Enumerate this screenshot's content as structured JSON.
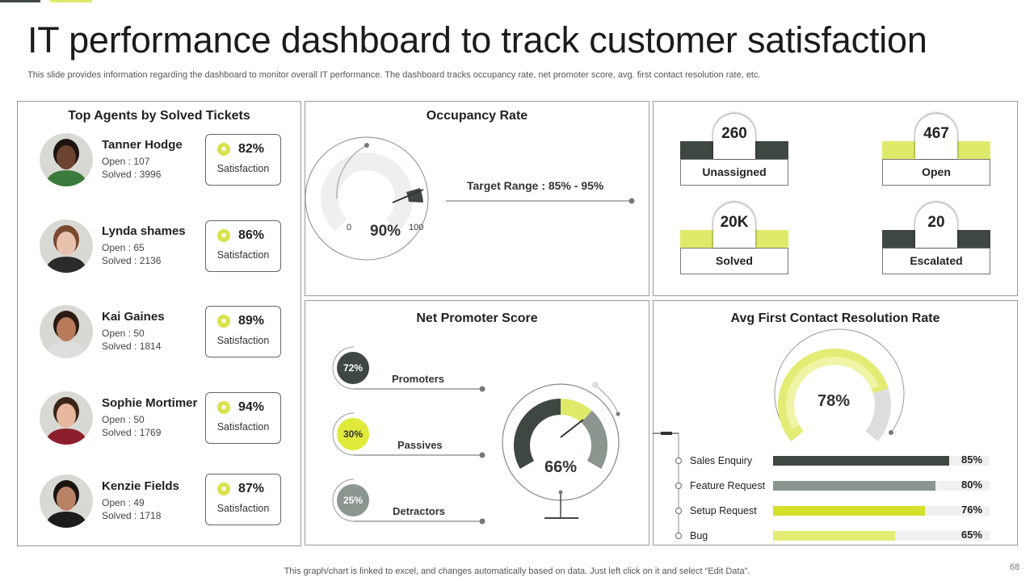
{
  "title": "IT performance dashboard to track customer satisfaction",
  "subtitle": "This slide provides information regarding the dashboard to monitor overall IT performance. The dashboard tracks occupancy rate, net promoter score, avg. first contact resolution rate, etc.",
  "agents_panel": {
    "title": "Top Agents by Solved Tickets",
    "agents": [
      {
        "name": "Tanner Hodge",
        "open": "Open : 107",
        "solved": "Solved : 3996",
        "pct": "82%",
        "sat_label": "Satisfaction",
        "skin": "#6b4330",
        "hair": "#1d1410",
        "shirt": "#3a7a3a"
      },
      {
        "name": "Lynda shames",
        "open": "Open : 65",
        "solved": "Solved : 2136",
        "pct": "86%",
        "sat_label": "Satisfaction",
        "skin": "#e8c2ae",
        "hair": "#7a4a2e",
        "shirt": "#2b2b2b"
      },
      {
        "name": "Kai Gaines",
        "open": "Open : 50",
        "solved": "Solved : 1814",
        "pct": "89%",
        "sat_label": "Satisfaction",
        "skin": "#b77a5a",
        "hair": "#2a1a12",
        "shirt": "#dedede"
      },
      {
        "name": "Sophie Mortimer",
        "open": "Open : 50",
        "solved": "Solved : 1769",
        "pct": "94%",
        "sat_label": "Satisfaction",
        "skin": "#e6b79d",
        "hair": "#3a2418",
        "shirt": "#8c1f2e"
      },
      {
        "name": "Kenzie Fields",
        "open": "Open : 49",
        "solved": "Solved : 1718",
        "pct": "87%",
        "sat_label": "Satisfaction",
        "skin": "#b98266",
        "hair": "#1a1410",
        "shirt": "#1c1c1c"
      }
    ]
  },
  "occupancy": {
    "title": "Occupancy Rate",
    "value": "90%",
    "min": "0",
    "max": "100",
    "target": "Target Range : 85% - 95%"
  },
  "stats": [
    {
      "value": "260",
      "label": "Unassigned",
      "band_color": "#3f4743"
    },
    {
      "value": "467",
      "label": "Open",
      "band_color": "#dfea6a"
    },
    {
      "value": "20K",
      "label": "Solved",
      "band_color": "#dfea6a"
    },
    {
      "value": "20",
      "label": "Escalated",
      "band_color": "#3f4743"
    }
  ],
  "nps": {
    "title": "Net Promoter Score",
    "score": "66%",
    "score_value": 0.66,
    "items": [
      {
        "pct": "72%",
        "label": "Promoters",
        "color": "#3f4743",
        "text_color": "#ffffff"
      },
      {
        "pct": "30%",
        "label": "Passives",
        "color": "#dfea3a",
        "text_color": "#333333"
      },
      {
        "pct": "25%",
        "label": "Detractors",
        "color": "#8a968e",
        "text_color": "#ffffff"
      }
    ]
  },
  "fcr": {
    "title": "Avg First Contact Resolution Rate",
    "value": "78%",
    "value_fraction": 0.78,
    "bars": [
      {
        "label": "Sales Enquiry",
        "pct": "85%",
        "value": 85,
        "color": "#3f4743"
      },
      {
        "label": "Feature Request",
        "pct": "80%",
        "value": 80,
        "color": "#8a968e"
      },
      {
        "label": "Setup Request",
        "pct": "76%",
        "value": 76,
        "color": "#d4e02a"
      },
      {
        "label": "Bug",
        "pct": "65%",
        "value": 65,
        "color": "#e3ec74"
      }
    ]
  },
  "footer": "This graph/chart is linked to excel,  and changes automatically based on data. Just left click on it and select “Edit Data”.",
  "page_number": "68"
}
